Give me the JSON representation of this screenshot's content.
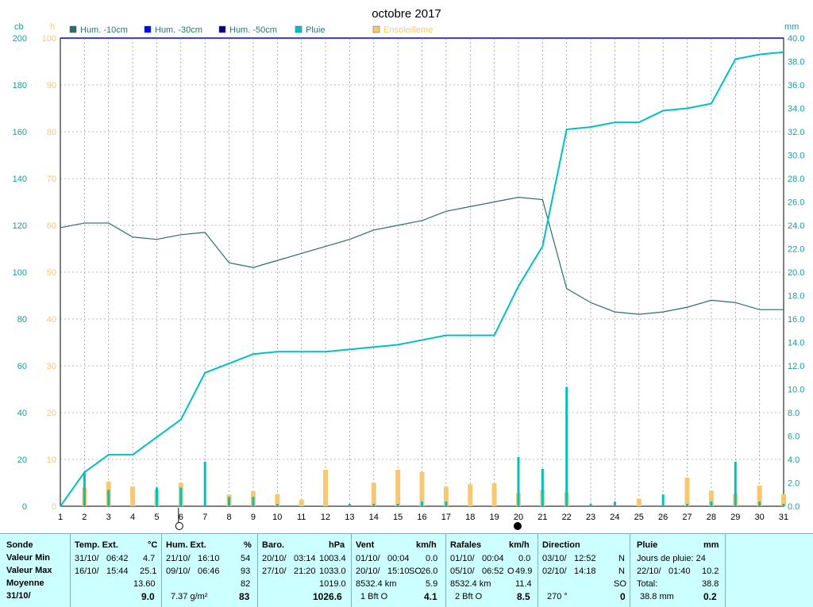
{
  "chart_data": {
    "type": "line",
    "title": "octobre 2017",
    "unit_labels": {
      "left1": "cb",
      "left2": "h",
      "right": "mm"
    },
    "x": [
      1,
      2,
      3,
      4,
      5,
      6,
      7,
      8,
      9,
      10,
      11,
      12,
      13,
      14,
      15,
      16,
      17,
      18,
      19,
      20,
      21,
      22,
      23,
      24,
      25,
      26,
      27,
      28,
      29,
      30,
      31
    ],
    "x_ticks": [
      "1",
      "2",
      "3",
      "4",
      "5",
      "6",
      "7",
      "8",
      "9",
      "10",
      "11",
      "12",
      "13",
      "14",
      "15",
      "16",
      "17",
      "18",
      "19",
      "20",
      "21",
      "22",
      "23",
      "24",
      "25",
      "26",
      "27",
      "28",
      "29",
      "30",
      "31"
    ],
    "axes": {
      "left_cb": {
        "min": 0,
        "max": 200,
        "ticks": [
          "0",
          "20",
          "40",
          "60",
          "80",
          "100",
          "120",
          "140",
          "160",
          "180",
          "200"
        ]
      },
      "left_h": {
        "min": 0,
        "max": 100,
        "ticks": [
          "0",
          "10",
          "20",
          "30",
          "40",
          "50",
          "60",
          "70",
          "80",
          "90",
          "100"
        ]
      },
      "right_mm": {
        "min": 0,
        "max": 40,
        "ticks": [
          "0.0",
          "2.0",
          "4.0",
          "6.0",
          "8.0",
          "10.0",
          "12.0",
          "14.0",
          "16.0",
          "18.0",
          "20.0",
          "22.0",
          "24.0",
          "26.0",
          "28.0",
          "30.0",
          "32.0",
          "34.0",
          "36.0",
          "38.0",
          "40.0"
        ]
      }
    },
    "legend": [
      "Hum. -10cm",
      "Hum. -30cm",
      "Hum. -50cm",
      "Pluie",
      "Ensoleilleme"
    ],
    "legend_colors": [
      "#2e6b6b",
      "#0000ff",
      "#00008b",
      "#00c0c0",
      "#f8c870"
    ],
    "series": [
      {
        "name": "Hum. -10cm",
        "axis": "left_cb",
        "color": "#2e6b6b",
        "values": [
          119,
          121,
          121,
          115,
          114,
          116,
          117,
          104,
          102,
          105,
          108,
          111,
          114,
          118,
          120,
          122,
          126,
          128,
          130,
          132,
          131,
          93,
          87,
          83,
          82,
          83,
          85,
          88,
          87,
          84,
          84
        ]
      },
      {
        "name": "Pluie",
        "axis": "right_mm",
        "color": "#00c0c0",
        "cumulative": true,
        "values": [
          0,
          2.9,
          4.4,
          4.4,
          5.9,
          7.4,
          11.4,
          12.2,
          13.0,
          13.2,
          13.2,
          13.2,
          13.4,
          13.6,
          13.8,
          14.2,
          14.6,
          14.6,
          14.6,
          18.8,
          22.2,
          32.2,
          32.4,
          32.8,
          32.8,
          33.8,
          34.0,
          34.4,
          38.2,
          38.6,
          38.8
        ]
      },
      {
        "name": "Pluie",
        "axis": "right_mm",
        "color": "#00c0c0",
        "type": "bar",
        "values": [
          0,
          2.9,
          1.4,
          0,
          1.6,
          1.6,
          3.8,
          0.8,
          0.8,
          0.2,
          0,
          0,
          0.2,
          0.2,
          0.2,
          0.4,
          0.4,
          0,
          0,
          4.2,
          3.2,
          10.2,
          0.2,
          0.4,
          0,
          1.0,
          0.2,
          0.4,
          3.8,
          0.4,
          0.2
        ]
      },
      {
        "name": "Ensoleilleme",
        "axis": "left_h",
        "color": "#f8c870",
        "type": "bar",
        "values": [
          0,
          4,
          5.3,
          4.2,
          3.5,
          5,
          0,
          2.5,
          3.2,
          2.6,
          1.4,
          7.8,
          0,
          5,
          7.8,
          7.3,
          4.2,
          4.7,
          4.9,
          2.8,
          3.5,
          3,
          0,
          0,
          1.6,
          0,
          6.1,
          3.3,
          2.6,
          4.4,
          2.6
        ]
      }
    ],
    "moon_markers": [
      {
        "day": 6,
        "phase": "full"
      },
      {
        "day": 20,
        "phase": "new"
      }
    ],
    "grid": true
  },
  "summary": {
    "labels": {
      "col": "Sonde",
      "min": "Valeur Min",
      "max": "Valeur Max",
      "avg": "Moyenne",
      "date": "31/10/"
    },
    "temp": {
      "title": "Temp. Ext.",
      "unit": "°C",
      "min_date": "31/10/",
      "min_time": "06:42",
      "min_val": "4.7",
      "max_date": "16/10/",
      "max_time": "15:44",
      "max_val": "25.1",
      "avg": "13.60",
      "current": "9.0"
    },
    "hum": {
      "title": "Hum. Ext.",
      "unit": "%",
      "min_date": "21/10/",
      "min_time": "16:10",
      "min_val": "54",
      "max_date": "09/10/",
      "max_time": "06:46",
      "max_val": "93",
      "avg": "82",
      "extra": "7.37 g/m²",
      "current": "83"
    },
    "baro": {
      "title": "Baro.",
      "unit": "hPa",
      "min_date": "20/10/",
      "min_time": "03:14",
      "min_val": "1003.4",
      "max_date": "27/10/",
      "max_time": "21:20",
      "max_val": "1033.0",
      "avg": "1019.0",
      "current": "1026.6"
    },
    "vent": {
      "title": "Vent",
      "unit": "km/h",
      "min_date": "01/10/",
      "min_time": "00:04",
      "min_val": "0.0",
      "max_date": "20/10/",
      "max_time": "15:10",
      "max_dir": "SO",
      "max_val": "26.0",
      "dist": "8532.4 km",
      "avg": "5.9",
      "bft": "1 Bft O",
      "current": "4.1"
    },
    "rafales": {
      "title": "Rafales",
      "unit": "km/h",
      "min_date": "01/10/",
      "min_time": "00:04",
      "min_val": "0.0",
      "max_date": "05/10/",
      "max_time": "06:52",
      "max_dir": "O",
      "max_val": "49.9",
      "dist": "8532.4 km",
      "avg": "11.4",
      "bft": "2 Bft O",
      "current": "8.5"
    },
    "direction": {
      "title": "Direction",
      "min_date": "03/10/",
      "min_time": "12:52",
      "min_val": "N",
      "max_date": "02/10/",
      "max_time": "14:18",
      "max_val": "N",
      "avg": "SO",
      "deg": "270 °",
      "current": "0"
    },
    "pluie": {
      "title": "Pluie",
      "unit": "mm",
      "days": "Jours de pluie: 24",
      "max_date": "22/10/",
      "max_time": "01:40",
      "max_val": "10.2",
      "total_label": "Total:",
      "total": "38.8",
      "month": "38.8 mm",
      "current": "0.2"
    }
  }
}
